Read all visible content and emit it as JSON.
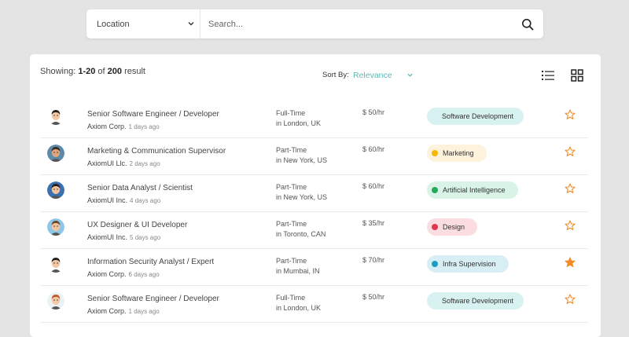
{
  "search": {
    "location_label": "Location",
    "placeholder": "Search..."
  },
  "results": {
    "showing_prefix": "Showing:",
    "range": "1-20",
    "of": "of",
    "total": "200",
    "suffix": "result"
  },
  "sort": {
    "label": "Sort By:",
    "value": "Relevance"
  },
  "colors": {
    "accent": "#5dbab6",
    "star_active": "#f28c28"
  },
  "jobs": [
    {
      "title": "Senior Software Engineer / Developer",
      "company": "Axiom Corp.",
      "posted": "1 days ago",
      "type": "Full-Time",
      "location": "in London, UK",
      "rate": "$ 50/hr",
      "tag": "Software Development",
      "tag_bg": "#d8f1f1",
      "tag_dot": "",
      "starred": false,
      "avatar_skin": "#f2c7a5",
      "avatar_bg": "#ffffff",
      "avatar_hair": "#222222"
    },
    {
      "title": "Marketing & Communication Supervisor",
      "company": "AxiomUI Llc.",
      "posted": "2 days ago",
      "type": "Part-Time",
      "location": "in New York, US",
      "rate": "$ 60/hr",
      "tag": "Marketing",
      "tag_bg": "#fdf2dc",
      "tag_dot": "#f5b700",
      "starred": false,
      "avatar_skin": "#e0a77f",
      "avatar_bg": "#5c8aa8",
      "avatar_hair": "#3b2a20"
    },
    {
      "title": "Senior Data Analyst / Scientist",
      "company": "AxiomUI Inc.",
      "posted": "4 days ago",
      "type": "Part-Time",
      "location": "in New York, US",
      "rate": "$ 60/hr",
      "tag": "Artificial Intelligence",
      "tag_bg": "#d9f3e6",
      "tag_dot": "#27a85a",
      "starred": false,
      "avatar_skin": "#f0c29f",
      "avatar_bg": "#3a6fb0",
      "avatar_hair": "#2a1c15"
    },
    {
      "title": "UX Designer & UI Developer",
      "company": "AxiomUI Inc.",
      "posted": "5 days ago",
      "type": "Part-Time",
      "location": "in Toronto, CAN",
      "rate": "$ 35/hr",
      "tag": "Design",
      "tag_bg": "#fbdde1",
      "tag_dot": "#e2364e",
      "starred": false,
      "avatar_skin": "#f3c4a0",
      "avatar_bg": "#8ec6e8",
      "avatar_hair": "#6b4a2b"
    },
    {
      "title": "Information Security Analyst / Expert",
      "company": "Axiom Corp.",
      "posted": "6 days ago",
      "type": "Part-Time",
      "location": "in Mumbai, IN",
      "rate": "$ 70/hr",
      "tag": "Infra Supervision",
      "tag_bg": "#d8eef5",
      "tag_dot": "#1c9bbd",
      "starred": true,
      "avatar_skin": "#f2c7a5",
      "avatar_bg": "#ffffff",
      "avatar_hair": "#222222"
    },
    {
      "title": "Senior Software Engineer / Developer",
      "company": "Axiom Corp.",
      "posted": "1 days ago",
      "type": "Full-Time",
      "location": "in London, UK",
      "rate": "$ 50/hr",
      "tag": "Software Development",
      "tag_bg": "#d8f1f1",
      "tag_dot": "",
      "starred": false,
      "avatar_skin": "#f6caa7",
      "avatar_bg": "#e9f2f4",
      "avatar_hair": "#c25b2c"
    }
  ]
}
